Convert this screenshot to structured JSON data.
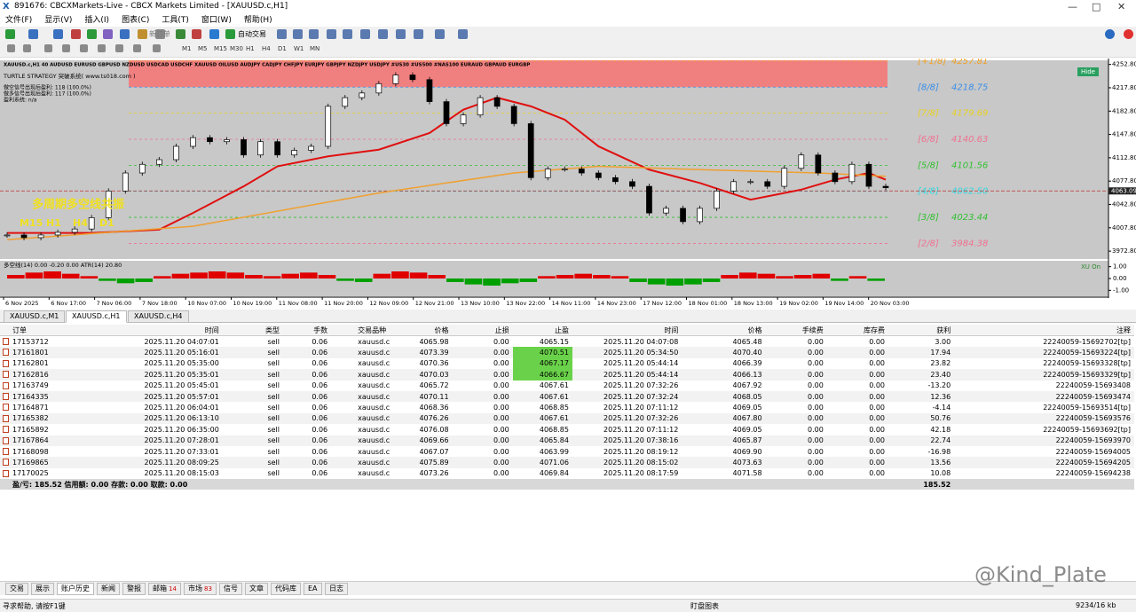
{
  "window": {
    "title": "891676: CBCXMarkets-Live - CBCX Markets Limited - [XAUUSD.c,H1]",
    "menu": [
      "文件(F)",
      "显示(V)",
      "插入(I)",
      "图表(C)",
      "工具(T)",
      "窗口(W)",
      "帮助(H)"
    ],
    "toolbar": [
      "新订单",
      "自动交易"
    ],
    "timeframes": [
      "M1",
      "M5",
      "M15",
      "M30",
      "H1",
      "H4",
      "D1",
      "W1",
      "MN"
    ]
  },
  "chart_data": {
    "type": "candlestick",
    "symbol_bar": "XAUUSD.c,H1  40  AUDUSD  EURUSD  GBPUSD  NZDUSD  USDCAD  USDCHF  XAUUSD  OILUSD  AUDJPY  CADJPY  CHFJPY  EURJPY  GBPJPY  NZDJPY  USDJPY  #US30  #US500  #NAS100  EURAUD  GBPAUD  EURGBP",
    "indicator_name": "TURTLE STRATEGY 突破系统( www.ts018.com )",
    "stats": [
      "做空信号出现后盈利: 118 (100.0%)",
      "做多信号出现后盈利: 117 (100.0%)",
      "盈利系统: n/a"
    ],
    "resonance_title": "多周期多空线共振",
    "resonance_tfs": [
      "M15",
      "H1",
      "H4",
      "D1"
    ],
    "hide_button": "Hide",
    "ylim": [
      3961,
      4259
    ],
    "yticks": [
      {
        "value": 4252.8,
        "label": "4252.80"
      },
      {
        "value": 4217.8,
        "label": "4217.80"
      },
      {
        "value": 4182.8,
        "label": "4182.80"
      },
      {
        "value": 4147.8,
        "label": "4147.80"
      },
      {
        "value": 4112.8,
        "label": "4112.80"
      },
      {
        "value": 4077.8,
        "label": "4077.80"
      },
      {
        "value": 4042.8,
        "label": "4042.80"
      },
      {
        "value": 4007.8,
        "label": "4007.80"
      },
      {
        "value": 3972.8,
        "label": "3972.80"
      }
    ],
    "current_price": 4063.09,
    "zone": {
      "range": [
        4218.75,
        4259
      ],
      "color": "#f08080"
    },
    "closes": [
      3997,
      3993,
      3997,
      4001,
      4006,
      4023,
      4063,
      4090,
      4103,
      4110,
      4130,
      4143,
      4137,
      4140,
      4117,
      4137,
      4117,
      4124,
      4130,
      4190,
      4203,
      4210,
      4224,
      4237,
      4230,
      4197,
      4164,
      4177,
      4203,
      4190,
      4164,
      4083,
      4096,
      4096,
      4090,
      4083,
      4077,
      4070,
      4030,
      4037,
      4017,
      4037,
      4063,
      4077,
      4077,
      4070,
      4097,
      4117,
      4090,
      4077,
      4103,
      4070,
      4068
    ],
    "series": [
      {
        "name": "MA red",
        "color": "#e01010",
        "x": [
          0,
          5,
          9,
          11,
          14,
          16,
          19,
          22,
          25,
          27,
          29,
          31,
          33,
          35,
          38,
          41,
          44,
          45,
          47,
          49,
          51,
          52
        ],
        "values": [
          4000,
          4000,
          4005,
          4030,
          4070,
          4100,
          4115,
          4125,
          4150,
          4185,
          4203,
          4190,
          4170,
          4130,
          4095,
          4075,
          4050,
          4055,
          4065,
          4080,
          4090,
          4080
        ]
      },
      {
        "name": "MA orange",
        "color": "#f0a030",
        "x": [
          0,
          11,
          22,
          30,
          35,
          41,
          48,
          52
        ],
        "values": [
          3990,
          4010,
          4060,
          4090,
          4100,
          4095,
          4090,
          4085
        ]
      }
    ],
    "levels": [
      {
        "label": "[+1/8]",
        "value": 4257.81,
        "color": "#f0a020"
      },
      {
        "label": "[8/8]",
        "value": 4218.75,
        "color": "#3a8ee8"
      },
      {
        "label": "[7/8]",
        "value": 4179.69,
        "color": "#e8d020"
      },
      {
        "label": "[6/8]",
        "value": {
          "value": 4140.63,
          "label": "4140.63"
        },
        "color": "#f07090"
      },
      {
        "label": "[5/8]",
        "value": 4101.56,
        "color": "#30c030"
      },
      {
        "label": "[4/8]",
        "value": {
          "value": 4062.5,
          "label": "4062.50"
        },
        "color": "#30d8e0"
      },
      {
        "label": "[3/8]",
        "value": 4023.44,
        "color": "#30c030"
      },
      {
        "label": "[2/8]",
        "value": 3984.38,
        "color": "#f07090"
      }
    ],
    "xtick_labels": [
      "6 Nov 2025",
      "6 Nov 17:00",
      "7 Nov 06:00",
      "7 Nov 18:00",
      "10 Nov 07:00",
      "10 Nov 19:00",
      "11 Nov 08:00",
      "11 Nov 20:00",
      "12 Nov 09:00",
      "12 Nov 21:00",
      "13 Nov 10:00",
      "13 Nov 22:00",
      "14 Nov 11:00",
      "14 Nov 23:00",
      "17 Nov 12:00",
      "18 Nov 01:00",
      "18 Nov 13:00",
      "19 Nov 02:00",
      "19 Nov 14:00",
      "20 Nov 03:00"
    ],
    "oscillator": {
      "label": "多空线(14) 0.00 -0.20 0.00 ATR(14) 20.80",
      "badge": "XU On",
      "ylim": [
        -1.5,
        1.5
      ],
      "yticks": [
        {
          "value": 1,
          "label": "1.00"
        },
        {
          "value": 0,
          "label": "0.00"
        },
        {
          "value": -1,
          "label": "-1.00"
        }
      ],
      "pos_color": "#e00000",
      "neg_color": "#00a000",
      "values": [
        0.3,
        0.5,
        0.6,
        0.4,
        0.2,
        -0.2,
        -0.4,
        -0.3,
        0.2,
        0.4,
        0.5,
        0.6,
        0.5,
        0.3,
        0.2,
        0.4,
        0.5,
        0.3,
        -0.2,
        -0.3,
        0.4,
        0.6,
        0.5,
        0.3,
        -0.3,
        -0.5,
        -0.6,
        -0.4,
        -0.3,
        0.2,
        0.3,
        0.4,
        0.3,
        0.2,
        -0.3,
        -0.5,
        -0.6,
        -0.5,
        -0.3,
        0.3,
        0.5,
        0.4,
        0.2,
        0.3,
        0.4,
        -0.2,
        0.2,
        -0.2
      ]
    }
  },
  "chart_tabs": [
    "XAUUSD.c,M1",
    "XAUUSD.c,H1",
    "XAUUSD.c,H4"
  ],
  "table": {
    "columns": [
      "订单",
      "时间",
      "类型",
      "手数",
      "交易品种",
      "价格",
      "止损",
      "止盈",
      "时间",
      "价格",
      "手续费",
      "库存费",
      "获利",
      "注释"
    ],
    "rows": [
      [
        "17153712",
        "2025.11.20 04:07:01",
        "sell",
        "0.06",
        "xauusd.c",
        "4065.98",
        "0.00",
        "4065.15",
        "2025.11.20 04:07:08",
        "4065.48",
        "0.00",
        "0.00",
        "3.00",
        "22240059-15692702[tp]"
      ],
      [
        "17161801",
        "2025.11.20 05:16:01",
        "sell",
        "0.06",
        "xauusd.c",
        "4073.39",
        "0.00",
        "4070.51",
        "2025.11.20 05:34:50",
        "4070.40",
        "0.00",
        "0.00",
        "17.94",
        "22240059-15693224[tp]"
      ],
      [
        "17162801",
        "2025.11.20 05:35:00",
        "sell",
        "0.06",
        "xauusd.c",
        "4070.36",
        "0.00",
        "4067.17",
        "2025.11.20 05:44:14",
        "4066.39",
        "0.00",
        "0.00",
        "23.82",
        "22240059-15693328[tp]"
      ],
      [
        "17162816",
        "2025.11.20 05:35:01",
        "sell",
        "0.06",
        "xauusd.c",
        "4070.03",
        "0.00",
        "4066.67",
        "2025.11.20 05:44:14",
        "4066.13",
        "0.00",
        "0.00",
        "23.40",
        "22240059-15693329[tp]"
      ],
      [
        "17163749",
        "2025.11.20 05:45:01",
        "sell",
        "0.06",
        "xauusd.c",
        "4065.72",
        "0.00",
        "4067.61",
        "2025.11.20 07:32:26",
        "4067.92",
        "0.00",
        "0.00",
        "-13.20",
        "22240059-15693408"
      ],
      [
        "17164335",
        "2025.11.20 05:57:01",
        "sell",
        "0.06",
        "xauusd.c",
        "4070.11",
        "0.00",
        "4067.61",
        "2025.11.20 07:32:24",
        "4068.05",
        "0.00",
        "0.00",
        "12.36",
        "22240059-15693474"
      ],
      [
        "17164871",
        "2025.11.20 06:04:01",
        "sell",
        "0.06",
        "xauusd.c",
        "4068.36",
        "0.00",
        "4068.85",
        "2025.11.20 07:11:12",
        "4069.05",
        "0.00",
        "0.00",
        "-4.14",
        "22240059-15693514[tp]"
      ],
      [
        "17165382",
        "2025.11.20 06:13:10",
        "sell",
        "0.06",
        "xauusd.c",
        "4076.26",
        "0.00",
        "4067.61",
        "2025.11.20 07:32:26",
        "4067.80",
        "0.00",
        "0.00",
        "50.76",
        "22240059-15693576"
      ],
      [
        "17165892",
        "2025.11.20 06:35:00",
        "sell",
        "0.06",
        "xauusd.c",
        "4076.08",
        "0.00",
        "4068.85",
        "2025.11.20 07:11:12",
        "4069.05",
        "0.00",
        "0.00",
        "42.18",
        "22240059-15693692[tp]"
      ],
      [
        "17167864",
        "2025.11.20 07:28:01",
        "sell",
        "0.06",
        "xauusd.c",
        "4069.66",
        "0.00",
        "4065.84",
        "2025.11.20 07:38:16",
        "4065.87",
        "0.00",
        "0.00",
        "22.74",
        "22240059-15693970"
      ],
      [
        "17168098",
        "2025.11.20 07:33:01",
        "sell",
        "0.06",
        "xauusd.c",
        "4067.07",
        "0.00",
        "4063.99",
        "2025.11.20 08:19:12",
        "4069.90",
        "0.00",
        "0.00",
        "-16.98",
        "22240059-15694005"
      ],
      [
        "17169865",
        "2025.11.20 08:09:25",
        "sell",
        "0.06",
        "xauusd.c",
        "4075.89",
        "0.00",
        "4071.06",
        "2025.11.20 08:15:02",
        "4073.63",
        "0.00",
        "0.00",
        "13.56",
        "22240059-15694205"
      ],
      [
        "17170025",
        "2025.11.20 08:15:03",
        "sell",
        "0.06",
        "xauusd.c",
        "4073.26",
        "0.00",
        "4069.84",
        "2025.11.20 08:17:59",
        "4071.58",
        "0.00",
        "0.00",
        "10.08",
        "22240059-15694238"
      ]
    ],
    "summary": {
      "text": "盈/亏: 185.52  信用额: 0.00  存款: 0.00  取款: 0.00",
      "total": "185.52"
    }
  },
  "bottom_tabs": [
    {
      "label": "交易"
    },
    {
      "label": "展示"
    },
    {
      "label": "账户历史"
    },
    {
      "label": "新闻"
    },
    {
      "label": "警报"
    },
    {
      "label": "邮箱",
      "badge": "14"
    },
    {
      "label": "市场",
      "badge": "83"
    },
    {
      "label": "信号"
    },
    {
      "label": "文章"
    },
    {
      "label": "代码库"
    },
    {
      "label": "EA"
    },
    {
      "label": "日志"
    }
  ],
  "status": {
    "help": "寻求帮助, 请按F1键",
    "profile": "盯盘图表",
    "traffic": "9234/16 kb"
  },
  "watermark": "@Kind_Plate"
}
